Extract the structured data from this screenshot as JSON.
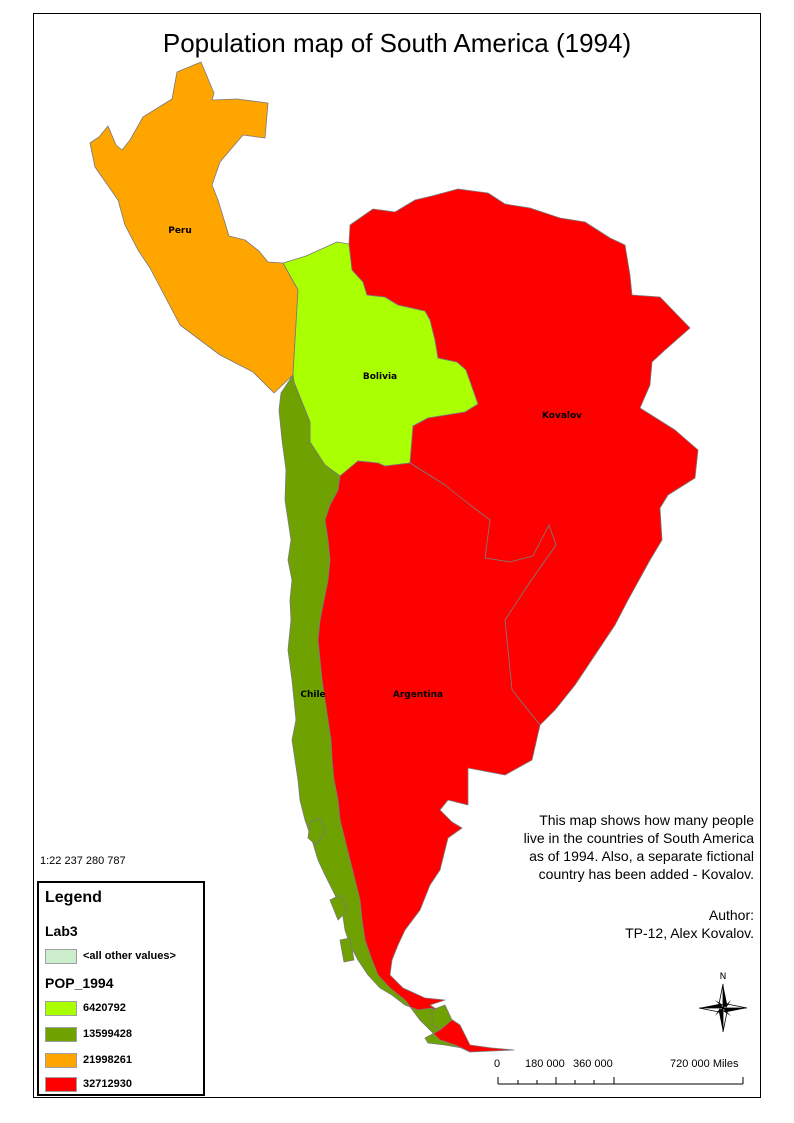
{
  "title": "Population map of South America (1994)",
  "scale_ratio": "1:22 237 280 787",
  "description": "This map shows how many people live in the countries of South America as of 1994. Also, a separate fictional country has been added - Kovalov.",
  "description_lines": [
    "This map shows how many people",
    "live in the countries of South America",
    "as of 1994. Also, a separate fictional",
    "country has been added - Kovalov."
  ],
  "author_lines": [
    "Author:",
    "TP-12, Alex Kovalov."
  ],
  "countries": [
    {
      "name": "Peru",
      "population": 21998261,
      "color": "#ffa500"
    },
    {
      "name": "Bolivia",
      "population": 6420792,
      "color": "#aaff00"
    },
    {
      "name": "Chile",
      "population": 13599428,
      "color": "#6fa100"
    },
    {
      "name": "Argentina",
      "population": 32712930,
      "color": "#ff0000"
    },
    {
      "name": "Kovalov",
      "population": 32712930,
      "color": "#ff0000"
    }
  ],
  "legend": {
    "title": "Legend",
    "layer": "Lab3",
    "other_values": {
      "label": "<all other values>",
      "color": "#cceecc"
    },
    "field": "POP_1994",
    "classes": [
      {
        "label": "6420792",
        "color": "#aaff00"
      },
      {
        "label": "13599428",
        "color": "#6fa100"
      },
      {
        "label": "21998261",
        "color": "#ffa500"
      },
      {
        "label": "32712930",
        "color": "#ff0000"
      }
    ]
  },
  "scalebar": {
    "labels": [
      "0",
      "180 000",
      "360 000",
      "720 000 Miles"
    ]
  },
  "north_arrow": {
    "label": "N",
    "icon": "compass-rose-icon"
  }
}
